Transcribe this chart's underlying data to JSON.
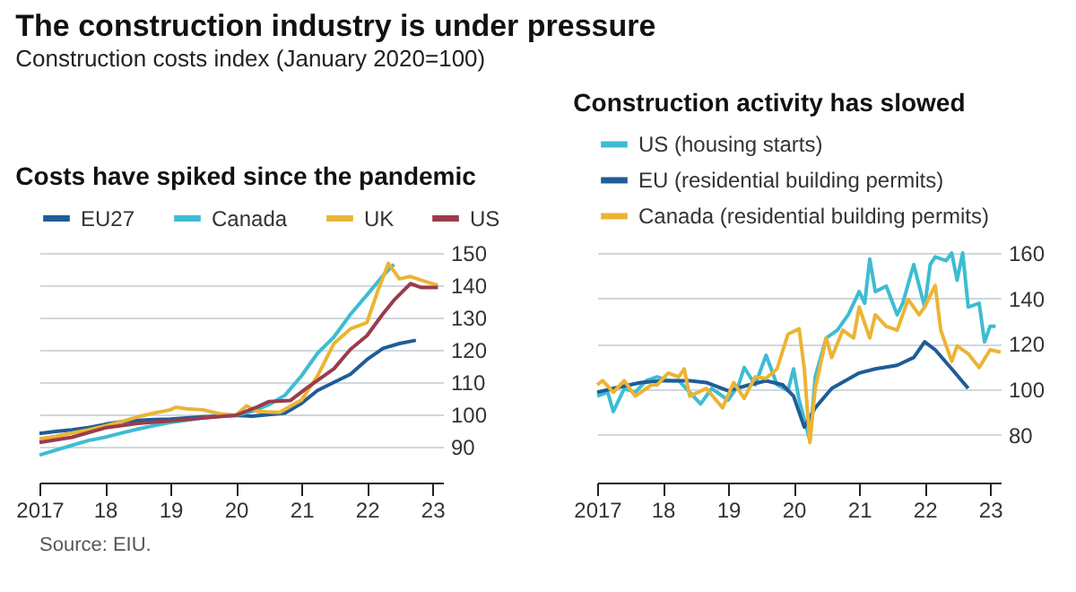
{
  "chart_data": [
    {
      "type": "other",
      "title": "The construction industry is under pressure",
      "subtitle": "Construction costs index (January 2020=100)",
      "annotations": [
        "Source: EIU."
      ]
    },
    {
      "type": "line",
      "title": "Costs have spiked since the pandemic",
      "legend": "top",
      "grid": "y",
      "xlim": [
        "2017-01",
        "2023-03"
      ],
      "ylim": [
        79,
        150
      ],
      "yticks": [
        90,
        100,
        110,
        120,
        130,
        140,
        150
      ],
      "xticks": [
        {
          "value": "2017-01",
          "label": "2017"
        },
        {
          "value": "2018-01",
          "label": "18"
        },
        {
          "value": "2019-01",
          "label": "19"
        },
        {
          "value": "2020-01",
          "label": "20"
        },
        {
          "value": "2021-01",
          "label": "21"
        },
        {
          "value": "2022-01",
          "label": "22"
        },
        {
          "value": "2023-01",
          "label": "23"
        }
      ],
      "series": [
        {
          "name": "EU27",
          "color": "#1f5c99",
          "x": [
            "2017-01",
            "2017-04",
            "2017-07",
            "2017-10",
            "2018-01",
            "2018-04",
            "2018-07",
            "2018-10",
            "2019-01",
            "2019-04",
            "2019-07",
            "2019-10",
            "2020-01",
            "2020-04",
            "2020-07",
            "2020-10",
            "2021-01",
            "2021-04",
            "2021-07",
            "2021-10",
            "2022-01",
            "2022-04",
            "2022-07",
            "2022-10"
          ],
          "values": [
            94.2,
            94.8,
            95.3,
            96,
            97,
            97.8,
            98.2,
            98.5,
            98.6,
            99,
            99.3,
            99.6,
            99.8,
            99.5,
            100,
            100.5,
            103.5,
            107.5,
            110,
            112.5,
            117,
            120.5,
            122,
            123
          ]
        },
        {
          "name": "Canada",
          "color": "#3ebcd2",
          "x": [
            "2017-01",
            "2017-04",
            "2017-07",
            "2017-10",
            "2018-01",
            "2018-04",
            "2018-07",
            "2018-10",
            "2019-01",
            "2019-04",
            "2019-07",
            "2019-10",
            "2020-01",
            "2020-04",
            "2020-07",
            "2020-10",
            "2021-01",
            "2021-04",
            "2021-07",
            "2021-10",
            "2022-01",
            "2022-04",
            "2022-06"
          ],
          "values": [
            87.5,
            89,
            90.5,
            92,
            93,
            94.3,
            95.5,
            96.6,
            97.6,
            98.3,
            99,
            99.5,
            99.8,
            101,
            103,
            106,
            112,
            119,
            124,
            131,
            137,
            143,
            146.5
          ]
        },
        {
          "name": "UK",
          "color": "#ebb434",
          "x": [
            "2017-01",
            "2017-04",
            "2017-07",
            "2017-10",
            "2018-01",
            "2018-04",
            "2018-07",
            "2018-10",
            "2019-01",
            "2019-02",
            "2019-04",
            "2019-07",
            "2019-10",
            "2020-01",
            "2020-03",
            "2020-05",
            "2020-09",
            "2021-01",
            "2021-04",
            "2021-07",
            "2021-10",
            "2022-01",
            "2022-03",
            "2022-05",
            "2022-07",
            "2022-09",
            "2022-12",
            "2023-02"
          ],
          "values": [
            92.5,
            93.3,
            94.3,
            95.3,
            96.5,
            97.8,
            99.3,
            100.5,
            101.5,
            102.3,
            101.8,
            101.5,
            100.3,
            99.8,
            102.7,
            101,
            100.7,
            104.5,
            112,
            122,
            126.5,
            128.5,
            138,
            146.8,
            142,
            142.7,
            141,
            140
          ]
        },
        {
          "name": "US",
          "color": "#9a3c4c",
          "x": [
            "2017-01",
            "2017-07",
            "2018-01",
            "2018-07",
            "2019-01",
            "2019-07",
            "2020-01",
            "2020-05",
            "2020-07",
            "2020-11",
            "2021-02",
            "2021-07",
            "2021-10",
            "2022-01",
            "2022-04",
            "2022-06",
            "2022-09",
            "2022-11",
            "2023-02"
          ],
          "values": [
            91.4,
            93,
            95.9,
            97.3,
            98.1,
            99,
            99.8,
            102.4,
            104,
            104.4,
            108.3,
            114.2,
            120.2,
            124.4,
            131.2,
            135.4,
            140.5,
            139.3,
            139.3
          ]
        }
      ]
    },
    {
      "type": "line",
      "title": "Construction activity has slowed",
      "legend": "top",
      "grid": "y",
      "xlim": [
        "2017-01",
        "2023-03"
      ],
      "ylim": [
        59,
        160
      ],
      "yticks": [
        80,
        100,
        120,
        140,
        160
      ],
      "xticks": [
        {
          "value": "2017-01",
          "label": "2017"
        },
        {
          "value": "2018-01",
          "label": "18"
        },
        {
          "value": "2019-01",
          "label": "19"
        },
        {
          "value": "2020-01",
          "label": "20"
        },
        {
          "value": "2021-01",
          "label": "21"
        },
        {
          "value": "2022-01",
          "label": "22"
        },
        {
          "value": "2023-01",
          "label": "23"
        }
      ],
      "series": [
        {
          "name": "US (housing starts)",
          "color": "#3ebcd2",
          "x": [
            "2017-01",
            "2017-03",
            "2017-04",
            "2017-06",
            "2017-08",
            "2017-10",
            "2017-12",
            "2018-02",
            "2018-04",
            "2018-08",
            "2018-10",
            "2019-01",
            "2019-03",
            "2019-04",
            "2019-06",
            "2019-08",
            "2019-10",
            "2019-12",
            "2020-01",
            "2020-02",
            "2020-04",
            "2020-05",
            "2020-07",
            "2020-09",
            "2020-11",
            "2021-01",
            "2021-02",
            "2021-03",
            "2021-04",
            "2021-06",
            "2021-08",
            "2021-09",
            "2021-11",
            "2022-01",
            "2022-02",
            "2022-03",
            "2022-05",
            "2022-06",
            "2022-07",
            "2022-08",
            "2022-09",
            "2022-11",
            "2022-12",
            "2023-01",
            "2023-02"
          ],
          "values": [
            97,
            98.7,
            90.2,
            100.4,
            98.7,
            103.8,
            105.5,
            103.8,
            103.8,
            93.6,
            100.4,
            95.3,
            102,
            109.6,
            102,
            115,
            102,
            99.4,
            109,
            95.3,
            77.6,
            105.5,
            122.6,
            126,
            132.8,
            143,
            137.9,
            157.3,
            143,
            145.4,
            132.8,
            137.9,
            154.9,
            136.2,
            154.9,
            158.3,
            156.6,
            160,
            148,
            160,
            136.2,
            137.9,
            120.9,
            127.7,
            127.7
          ]
        },
        {
          "name": "EU (residential building permits)",
          "color": "#1f5c99",
          "x": [
            "2017-01",
            "2017-04",
            "2017-09",
            "2018-01",
            "2018-06",
            "2018-09",
            "2019-01",
            "2019-05",
            "2019-08",
            "2019-11",
            "2020-01",
            "2020-03",
            "2020-05",
            "2020-08",
            "2021-01",
            "2021-04",
            "2021-08",
            "2021-11",
            "2022-01",
            "2022-03",
            "2022-06",
            "2022-09"
          ],
          "values": [
            98.7,
            100.4,
            103,
            103.8,
            103.8,
            103,
            99.4,
            102,
            103.8,
            102,
            97,
            83.4,
            91.9,
            100.4,
            107.2,
            109,
            110.6,
            114,
            120.9,
            117.4,
            109,
            100.4
          ]
        },
        {
          "name": "Canada (residential building permits)",
          "color": "#ebb434",
          "x": [
            "2017-01",
            "2017-02",
            "2017-04",
            "2017-06",
            "2017-08",
            "2017-11",
            "2017-12",
            "2018-02",
            "2018-04",
            "2018-05",
            "2018-06",
            "2018-09",
            "2018-12",
            "2019-02",
            "2019-04",
            "2019-06",
            "2019-08",
            "2019-10",
            "2019-12",
            "2020-02",
            "2020-03",
            "2020-04",
            "2020-05",
            "2020-07",
            "2020-08",
            "2020-10",
            "2020-12",
            "2021-01",
            "2021-03",
            "2021-04",
            "2021-06",
            "2021-08",
            "2021-10",
            "2021-12",
            "2022-01",
            "2022-03",
            "2022-04",
            "2022-06",
            "2022-07",
            "2022-09",
            "2022-11",
            "2023-01",
            "2023-03"
          ],
          "values": [
            102,
            103.8,
            98.7,
            103.8,
            97,
            102,
            102,
            107.2,
            105.5,
            109,
            97,
            100.4,
            91.9,
            103,
            96,
            105.5,
            104.9,
            109,
            124.3,
            126.6,
            109,
            76.6,
            100.4,
            122.6,
            114,
            126,
            122.6,
            136.2,
            122.6,
            132.8,
            127.7,
            126,
            139.6,
            132.8,
            136.2,
            145.7,
            126,
            112.3,
            119.1,
            115.7,
            109.6,
            117.4,
            116.4
          ]
        }
      ]
    }
  ]
}
